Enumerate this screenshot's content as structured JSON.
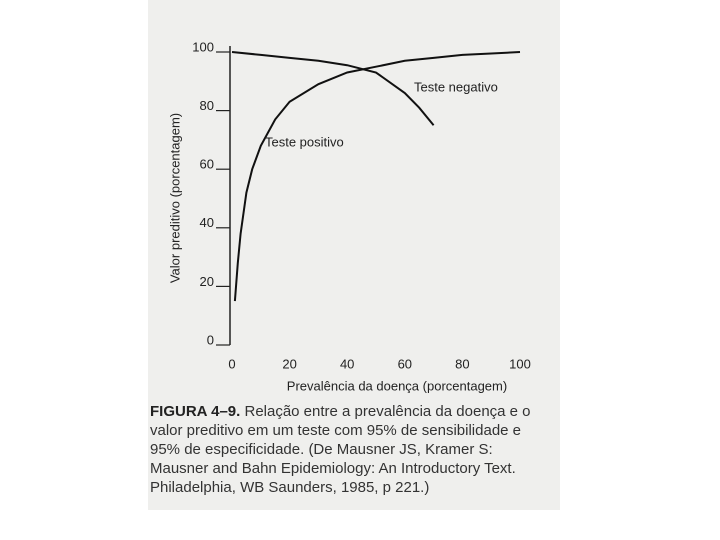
{
  "chart_data": {
    "type": "line",
    "ylabel": "Valor preditivo (porcentagem)",
    "xlabel": "Prevalência da doença (porcentagem)",
    "caption_label": "FIGURA 4–9.",
    "caption": "Relação entre a prevalência da doença e o valor preditivo em um teste com 95% de sensibilidade e 95% de especificidade. (De Mausner JS, Kramer S: Mausner and Bahn Epidemiology: An Introductory Text. Philadelphia, WB Saunders, 1985, p 221.)",
    "xlim": [
      0,
      100
    ],
    "xticks": [
      0,
      20,
      40,
      60,
      80,
      100
    ],
    "ylim": [
      0,
      100
    ],
    "yticks": [
      0,
      20,
      40,
      60,
      80,
      100
    ],
    "series": [
      {
        "name": "Teste positivo",
        "color": "#111111",
        "x": [
          1,
          2,
          3,
          5,
          7,
          10,
          15,
          20,
          30,
          40,
          50,
          60,
          70,
          80,
          90,
          100
        ],
        "values": [
          15,
          28,
          38,
          52,
          60,
          68,
          77,
          83,
          89,
          93,
          95,
          97,
          98,
          99,
          99.5,
          100
        ]
      },
      {
        "name": "Teste negativo",
        "color": "#111111",
        "x": [
          0,
          10,
          20,
          30,
          40,
          50,
          60,
          65,
          70
        ],
        "values": [
          100,
          99,
          98,
          97,
          95.5,
          93,
          86,
          81,
          75
        ]
      }
    ]
  }
}
